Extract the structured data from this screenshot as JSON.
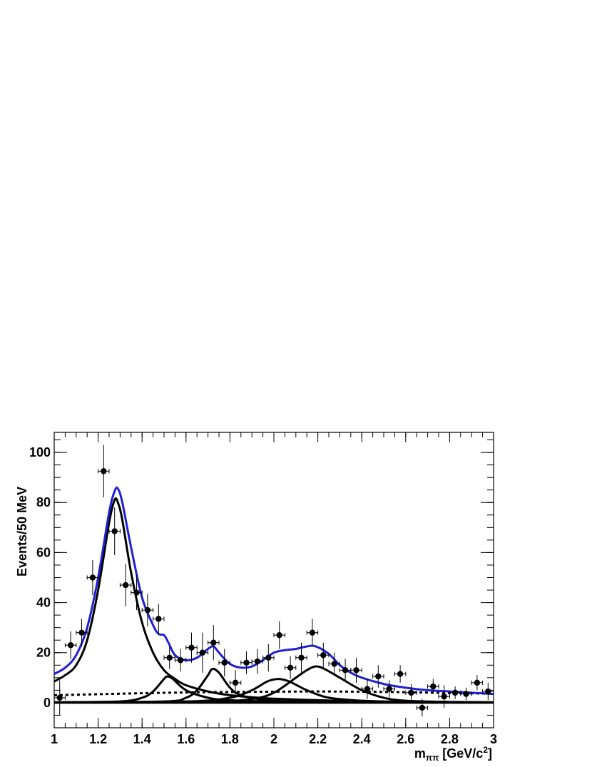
{
  "chart_data": {
    "type": "scatter",
    "xlabel_main": "m",
    "xlabel_sub": "ππ",
    "xlabel_unit_a": " [GeV/c",
    "xlabel_unit_sup": "2",
    "xlabel_unit_b": "]",
    "ylabel": "Events/50 MeV",
    "xlim": [
      1.0,
      3.0
    ],
    "ylim": [
      -10,
      108
    ],
    "x_ticks": [
      "1",
      "1.2",
      "1.4",
      "1.6",
      "1.8",
      "2",
      "2.2",
      "2.4",
      "2.6",
      "2.8",
      "3"
    ],
    "y_ticks": [
      "0",
      "20",
      "40",
      "60",
      "80",
      "100"
    ],
    "series": [
      {
        "kind": "data-points",
        "color": "#000000",
        "points": [
          {
            "x": 1.025,
            "y": 2,
            "err": 7
          },
          {
            "x": 1.075,
            "y": 23,
            "err": 5.5
          },
          {
            "x": 1.125,
            "y": 28,
            "err": 5.5
          },
          {
            "x": 1.175,
            "y": 50,
            "err": 7
          },
          {
            "x": 1.225,
            "y": 92.5,
            "err": 10.5
          },
          {
            "x": 1.275,
            "y": 68.5,
            "err": 9.5
          },
          {
            "x": 1.325,
            "y": 47,
            "err": 8.5
          },
          {
            "x": 1.375,
            "y": 44,
            "err": 7
          },
          {
            "x": 1.425,
            "y": 37,
            "err": 6.5
          },
          {
            "x": 1.475,
            "y": 33.5,
            "err": 6
          },
          {
            "x": 1.525,
            "y": 18,
            "err": 4.5
          },
          {
            "x": 1.575,
            "y": 17,
            "err": 4.5
          },
          {
            "x": 1.625,
            "y": 22,
            "err": 6
          },
          {
            "x": 1.675,
            "y": 20,
            "err": 8
          },
          {
            "x": 1.725,
            "y": 24,
            "err": 7
          },
          {
            "x": 1.775,
            "y": 16,
            "err": 5.5
          },
          {
            "x": 1.825,
            "y": 8,
            "err": 5
          },
          {
            "x": 1.875,
            "y": 16,
            "err": 4.5
          },
          {
            "x": 1.925,
            "y": 16.5,
            "err": 5
          },
          {
            "x": 1.975,
            "y": 18,
            "err": 5.5
          },
          {
            "x": 2.025,
            "y": 27,
            "err": 5.5
          },
          {
            "x": 2.075,
            "y": 14,
            "err": 4.5
          },
          {
            "x": 2.125,
            "y": 18,
            "err": 6
          },
          {
            "x": 2.175,
            "y": 28,
            "err": 5.5
          },
          {
            "x": 2.225,
            "y": 19,
            "err": 5
          },
          {
            "x": 2.275,
            "y": 15.5,
            "err": 4.5
          },
          {
            "x": 2.325,
            "y": 13,
            "err": 4.5
          },
          {
            "x": 2.375,
            "y": 13,
            "err": 5
          },
          {
            "x": 2.425,
            "y": 5.5,
            "err": 4
          },
          {
            "x": 2.475,
            "y": 10.5,
            "err": 4.5
          },
          {
            "x": 2.525,
            "y": 5.5,
            "err": 3.5
          },
          {
            "x": 2.575,
            "y": 11.5,
            "err": 3.5
          },
          {
            "x": 2.625,
            "y": 4,
            "err": 3.5
          },
          {
            "x": 2.675,
            "y": -2,
            "err": 3.5
          },
          {
            "x": 2.725,
            "y": 6.5,
            "err": 3
          },
          {
            "x": 2.775,
            "y": 2.5,
            "err": 4.5
          },
          {
            "x": 2.825,
            "y": 4,
            "err": 2.5
          },
          {
            "x": 2.875,
            "y": 3.5,
            "err": 2.5
          },
          {
            "x": 2.925,
            "y": 8,
            "err": 3
          },
          {
            "x": 2.975,
            "y": 4.5,
            "err": 3.5
          }
        ]
      },
      {
        "kind": "total-fit",
        "color": "#1f1fd6",
        "points": [
          [
            1.0,
            11.5
          ],
          [
            1.05,
            14
          ],
          [
            1.1,
            19
          ],
          [
            1.15,
            30
          ],
          [
            1.2,
            50
          ],
          [
            1.25,
            76
          ],
          [
            1.275,
            84.5
          ],
          [
            1.29,
            85.5
          ],
          [
            1.31,
            80
          ],
          [
            1.35,
            62
          ],
          [
            1.4,
            42
          ],
          [
            1.45,
            31
          ],
          [
            1.475,
            27.5
          ],
          [
            1.5,
            27
          ],
          [
            1.52,
            24
          ],
          [
            1.55,
            19
          ],
          [
            1.6,
            17
          ],
          [
            1.65,
            18
          ],
          [
            1.7,
            21.5
          ],
          [
            1.725,
            22.5
          ],
          [
            1.75,
            20
          ],
          [
            1.8,
            15.5
          ],
          [
            1.85,
            14
          ],
          [
            1.9,
            14.5
          ],
          [
            1.95,
            17
          ],
          [
            2.0,
            20
          ],
          [
            2.05,
            21
          ],
          [
            2.1,
            21.5
          ],
          [
            2.15,
            22.5
          ],
          [
            2.19,
            22.5
          ],
          [
            2.25,
            19.5
          ],
          [
            2.3,
            15
          ],
          [
            2.35,
            12
          ],
          [
            2.4,
            10
          ],
          [
            2.5,
            7.5
          ],
          [
            2.6,
            6
          ],
          [
            2.7,
            5
          ],
          [
            2.8,
            4.5
          ],
          [
            2.9,
            4
          ],
          [
            3.0,
            3.5
          ]
        ]
      },
      {
        "kind": "component-f2-1270",
        "color": "#000000",
        "points": [
          [
            1.0,
            8.5
          ],
          [
            1.05,
            11
          ],
          [
            1.1,
            15
          ],
          [
            1.15,
            25
          ],
          [
            1.2,
            45
          ],
          [
            1.25,
            72
          ],
          [
            1.275,
            81
          ],
          [
            1.29,
            80
          ],
          [
            1.31,
            73
          ],
          [
            1.35,
            52
          ],
          [
            1.4,
            32
          ],
          [
            1.45,
            20
          ],
          [
            1.5,
            13
          ],
          [
            1.55,
            9.5
          ],
          [
            1.6,
            7
          ],
          [
            1.7,
            4.5
          ],
          [
            1.8,
            3
          ],
          [
            1.9,
            2.2
          ],
          [
            2.0,
            1.6
          ],
          [
            2.2,
            1
          ],
          [
            2.4,
            0.6
          ],
          [
            2.6,
            0.4
          ],
          [
            3.0,
            0.2
          ]
        ]
      },
      {
        "kind": "component-1510",
        "color": "#000000",
        "points": [
          [
            1.0,
            0.2
          ],
          [
            1.3,
            0.5
          ],
          [
            1.4,
            2
          ],
          [
            1.45,
            4.5
          ],
          [
            1.5,
            9.5
          ],
          [
            1.515,
            10.5
          ],
          [
            1.54,
            9.5
          ],
          [
            1.6,
            5
          ],
          [
            1.7,
            2
          ],
          [
            1.8,
            1
          ],
          [
            2.0,
            0.5
          ],
          [
            2.4,
            0.2
          ],
          [
            3.0,
            0.1
          ]
        ]
      },
      {
        "kind": "component-1720",
        "color": "#000000",
        "points": [
          [
            1.0,
            0.1
          ],
          [
            1.5,
            0.5
          ],
          [
            1.6,
            2
          ],
          [
            1.65,
            5
          ],
          [
            1.7,
            11
          ],
          [
            1.72,
            13.5
          ],
          [
            1.75,
            12
          ],
          [
            1.8,
            6
          ],
          [
            1.85,
            3
          ],
          [
            1.95,
            1.2
          ],
          [
            2.1,
            0.5
          ],
          [
            2.5,
            0.2
          ],
          [
            3.0,
            0.1
          ]
        ]
      },
      {
        "kind": "component-2020",
        "color": "#000000",
        "points": [
          [
            1.0,
            0.1
          ],
          [
            1.6,
            0.5
          ],
          [
            1.8,
            2
          ],
          [
            1.9,
            5
          ],
          [
            1.97,
            8.5
          ],
          [
            2.02,
            9.5
          ],
          [
            2.07,
            8.5
          ],
          [
            2.15,
            5
          ],
          [
            2.25,
            2
          ],
          [
            2.4,
            0.8
          ],
          [
            2.6,
            0.3
          ],
          [
            3.0,
            0.1
          ]
        ]
      },
      {
        "kind": "component-2200",
        "color": "#000000",
        "points": [
          [
            1.0,
            0.1
          ],
          [
            1.7,
            0.5
          ],
          [
            1.9,
            1.5
          ],
          [
            2.0,
            4
          ],
          [
            2.1,
            10
          ],
          [
            2.15,
            13
          ],
          [
            2.19,
            14.5
          ],
          [
            2.23,
            13.5
          ],
          [
            2.3,
            10
          ],
          [
            2.4,
            5
          ],
          [
            2.5,
            2
          ],
          [
            2.6,
            0.8
          ],
          [
            2.8,
            0.3
          ],
          [
            3.0,
            0.1
          ]
        ]
      },
      {
        "kind": "background",
        "color": "#000000",
        "dashed": true,
        "points": [
          [
            1.0,
            3
          ],
          [
            1.2,
            3.4
          ],
          [
            1.4,
            3.8
          ],
          [
            1.6,
            4.1
          ],
          [
            1.8,
            4.3
          ],
          [
            2.0,
            4.4
          ],
          [
            2.2,
            4.5
          ],
          [
            2.4,
            4.4
          ],
          [
            2.6,
            4.2
          ],
          [
            2.8,
            3.9
          ],
          [
            3.0,
            3.6
          ]
        ]
      }
    ],
    "grid": false,
    "legend": "none"
  }
}
